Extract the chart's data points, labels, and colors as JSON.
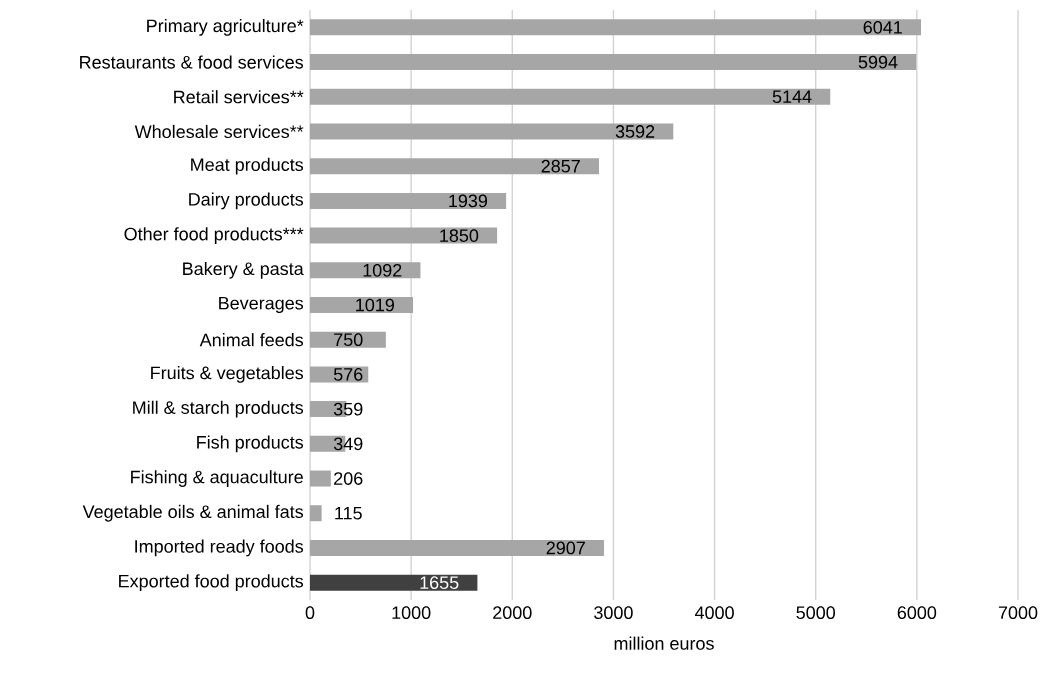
{
  "chart_data": {
    "type": "bar",
    "orientation": "horizontal",
    "xlabel": "million euros",
    "categories": [
      "Primary agriculture*",
      "Restaurants & food services",
      "Retail services**",
      "Wholesale services**",
      "Meat products",
      "Dairy products",
      "Other food products***",
      "Bakery & pasta",
      "Beverages",
      "Animal feeds",
      "Fruits & vegetables",
      "Mill & starch products",
      "Fish products",
      "Fishing & aquaculture",
      "Vegetable oils & animal fats",
      "Imported ready foods",
      "Exported food products"
    ],
    "values": [
      6041,
      5994,
      5144,
      3592,
      2857,
      1939,
      1850,
      1092,
      1019,
      750,
      576,
      359,
      349,
      206,
      115,
      2907,
      1655
    ],
    "colors": [
      "#a6a6a6",
      "#a6a6a6",
      "#a6a6a6",
      "#a6a6a6",
      "#a6a6a6",
      "#a6a6a6",
      "#a6a6a6",
      "#a6a6a6",
      "#a6a6a6",
      "#a6a6a6",
      "#a6a6a6",
      "#a6a6a6",
      "#a6a6a6",
      "#a6a6a6",
      "#a6a6a6",
      "#a6a6a6",
      "#404040"
    ],
    "xlim": [
      0,
      7000
    ],
    "xticks": [
      0,
      1000,
      2000,
      3000,
      4000,
      5000,
      6000,
      7000
    ],
    "grid": "x",
    "data_labels": true
  }
}
